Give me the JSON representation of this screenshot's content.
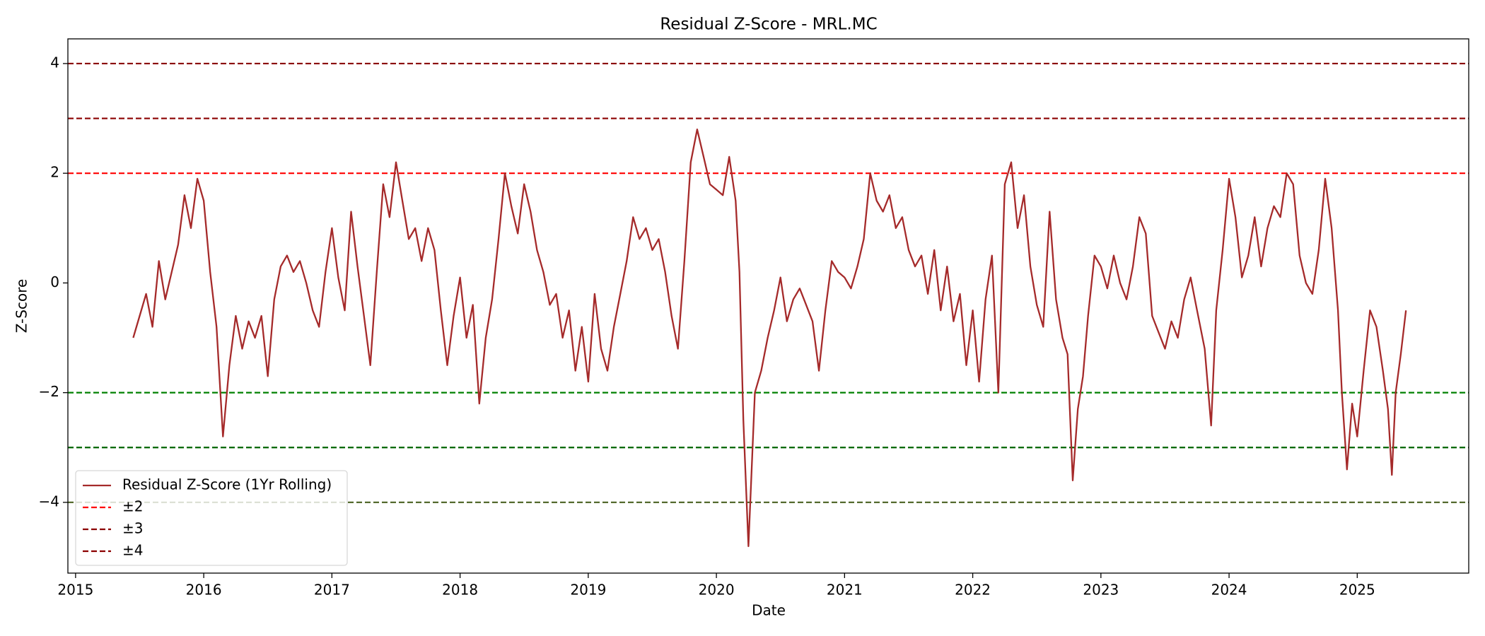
{
  "chart_data": {
    "type": "line",
    "title": "Residual Z-Score - MRL.MC",
    "x_label": "Date",
    "y_label": "Z-Score",
    "x": [
      2015.45,
      2015.5,
      2015.55,
      2015.6,
      2015.65,
      2015.7,
      2015.75,
      2015.8,
      2015.85,
      2015.9,
      2015.95,
      2016.0,
      2016.05,
      2016.1,
      2016.15,
      2016.2,
      2016.25,
      2016.3,
      2016.35,
      2016.4,
      2016.45,
      2016.5,
      2016.55,
      2016.6,
      2016.65,
      2016.7,
      2016.75,
      2016.8,
      2016.85,
      2016.9,
      2016.95,
      2017.0,
      2017.05,
      2017.1,
      2017.15,
      2017.2,
      2017.25,
      2017.3,
      2017.35,
      2017.4,
      2017.45,
      2017.5,
      2017.55,
      2017.6,
      2017.65,
      2017.7,
      2017.75,
      2017.8,
      2017.85,
      2017.9,
      2017.95,
      2018.0,
      2018.05,
      2018.1,
      2018.15,
      2018.2,
      2018.25,
      2018.3,
      2018.35,
      2018.4,
      2018.45,
      2018.5,
      2018.55,
      2018.6,
      2018.65,
      2018.7,
      2018.75,
      2018.8,
      2018.85,
      2018.9,
      2018.95,
      2019.0,
      2019.05,
      2019.1,
      2019.15,
      2019.2,
      2019.25,
      2019.3,
      2019.35,
      2019.4,
      2019.45,
      2019.5,
      2019.55,
      2019.6,
      2019.65,
      2019.7,
      2019.75,
      2019.8,
      2019.85,
      2019.9,
      2019.95,
      2020.0,
      2020.05,
      2020.1,
      2020.15,
      2020.18,
      2020.21,
      2020.25,
      2020.3,
      2020.35,
      2020.4,
      2020.45,
      2020.5,
      2020.55,
      2020.6,
      2020.65,
      2020.7,
      2020.75,
      2020.8,
      2020.85,
      2020.9,
      2020.95,
      2021.0,
      2021.05,
      2021.1,
      2021.15,
      2021.2,
      2021.25,
      2021.3,
      2021.35,
      2021.4,
      2021.45,
      2021.5,
      2021.55,
      2021.6,
      2021.65,
      2021.7,
      2021.75,
      2021.8,
      2021.85,
      2021.9,
      2021.95,
      2022.0,
      2022.05,
      2022.1,
      2022.15,
      2022.2,
      2022.25,
      2022.3,
      2022.35,
      2022.4,
      2022.45,
      2022.5,
      2022.55,
      2022.6,
      2022.65,
      2022.7,
      2022.74,
      2022.78,
      2022.82,
      2022.86,
      2022.9,
      2022.95,
      2023.0,
      2023.05,
      2023.1,
      2023.15,
      2023.2,
      2023.25,
      2023.3,
      2023.35,
      2023.4,
      2023.45,
      2023.5,
      2023.55,
      2023.6,
      2023.65,
      2023.7,
      2023.75,
      2023.81,
      2023.86,
      2023.9,
      2023.95,
      2024.0,
      2024.05,
      2024.1,
      2024.15,
      2024.2,
      2024.25,
      2024.3,
      2024.35,
      2024.4,
      2024.45,
      2024.5,
      2024.55,
      2024.6,
      2024.65,
      2024.7,
      2024.75,
      2024.8,
      2024.85,
      2024.88,
      2024.92,
      2024.96,
      2025.0,
      2025.05,
      2025.1,
      2025.15,
      2025.2,
      2025.24,
      2025.27,
      2025.3,
      2025.34,
      2025.38
    ],
    "series": [
      {
        "name": "Residual Z-Score (1Yr Rolling)",
        "color": "#a52a2a",
        "values": [
          -1.0,
          -0.6,
          -0.2,
          -0.8,
          0.4,
          -0.3,
          0.2,
          0.7,
          1.6,
          1.0,
          1.9,
          1.5,
          0.2,
          -0.8,
          -2.8,
          -1.5,
          -0.6,
          -1.2,
          -0.7,
          -1.0,
          -0.6,
          -1.7,
          -0.3,
          0.3,
          0.5,
          0.2,
          0.4,
          0.0,
          -0.5,
          -0.8,
          0.2,
          1.0,
          0.1,
          -0.5,
          1.3,
          0.3,
          -0.6,
          -1.5,
          0.2,
          1.8,
          1.2,
          2.2,
          1.5,
          0.8,
          1.0,
          0.4,
          1.0,
          0.6,
          -0.5,
          -1.5,
          -0.6,
          0.1,
          -1.0,
          -0.4,
          -2.2,
          -1.0,
          -0.3,
          0.8,
          2.0,
          1.4,
          0.9,
          1.8,
          1.3,
          0.6,
          0.2,
          -0.4,
          -0.2,
          -1.0,
          -0.5,
          -1.6,
          -0.8,
          -1.8,
          -0.2,
          -1.2,
          -1.6,
          -0.8,
          -0.2,
          0.4,
          1.2,
          0.8,
          1.0,
          0.6,
          0.8,
          0.2,
          -0.6,
          -1.2,
          0.4,
          2.2,
          2.8,
          2.3,
          1.8,
          1.7,
          1.6,
          2.3,
          1.5,
          0.2,
          -2.5,
          -4.8,
          -2.0,
          -1.6,
          -1.0,
          -0.5,
          0.1,
          -0.7,
          -0.3,
          -0.1,
          -0.4,
          -0.7,
          -1.6,
          -0.5,
          0.4,
          0.2,
          0.1,
          -0.1,
          0.3,
          0.8,
          2.0,
          1.5,
          1.3,
          1.6,
          1.0,
          1.2,
          0.6,
          0.3,
          0.5,
          -0.2,
          0.6,
          -0.5,
          0.3,
          -0.7,
          -0.2,
          -1.5,
          -0.5,
          -1.8,
          -0.3,
          0.5,
          -2.0,
          1.8,
          2.2,
          1.0,
          1.6,
          0.3,
          -0.4,
          -0.8,
          1.3,
          -0.3,
          -1.0,
          -1.3,
          -3.6,
          -2.3,
          -1.7,
          -0.6,
          0.5,
          0.3,
          -0.1,
          0.5,
          0.0,
          -0.3,
          0.3,
          1.2,
          0.9,
          -0.6,
          -0.9,
          -1.2,
          -0.7,
          -1.0,
          -0.3,
          0.1,
          -0.5,
          -1.2,
          -2.6,
          -0.5,
          0.6,
          1.9,
          1.2,
          0.1,
          0.5,
          1.2,
          0.3,
          1.0,
          1.4,
          1.2,
          2.0,
          1.8,
          0.5,
          0.0,
          -0.2,
          0.6,
          1.9,
          1.0,
          -0.5,
          -2.0,
          -3.4,
          -2.2,
          -2.8,
          -1.6,
          -0.5,
          -0.8,
          -1.6,
          -2.3,
          -3.5,
          -2.0,
          -1.3,
          -0.5
        ]
      }
    ],
    "reference_lines": [
      {
        "name": "±2",
        "color": "red",
        "values": [
          2
        ]
      },
      {
        "name": "±3",
        "color": "darkred",
        "values": [
          3
        ]
      },
      {
        "name": "±4",
        "color": "darkred",
        "values": [
          4
        ]
      },
      {
        "color": "green",
        "values": [
          -2
        ]
      },
      {
        "color": "darkgreen",
        "values": [
          -3
        ]
      },
      {
        "color": "darkolivegreen",
        "values": [
          -4
        ]
      }
    ],
    "xlim": [
      2014.94,
      2025.87
    ],
    "xticks": [
      2015,
      2016,
      2017,
      2018,
      2019,
      2020,
      2021,
      2022,
      2023,
      2024,
      2025
    ],
    "ylim": [
      -5.29,
      4.45
    ],
    "yticks": [
      {
        "value": -4,
        "label": "−4"
      },
      {
        "value": -2,
        "label": "−2"
      },
      0,
      2,
      4
    ],
    "legend": "lower left"
  }
}
